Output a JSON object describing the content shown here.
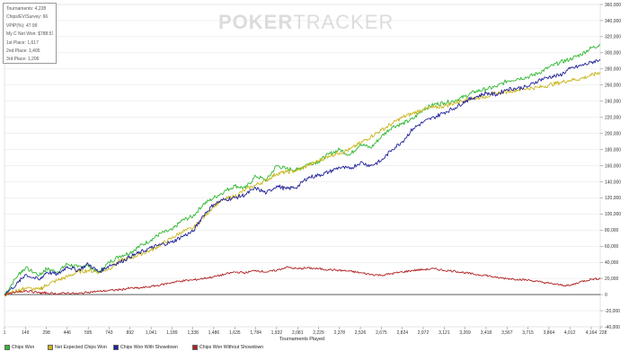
{
  "watermark": {
    "bold": "POKER",
    "light": "TRACKER"
  },
  "stats": [
    "Tournaments: 4,228",
    "Chips/EV/Survey: 66",
    "VPIP(%): 47.99",
    "My C Net Won: $788.51",
    "1st Place: 1,617",
    "2nd Place: 1,405",
    "3rd Place: 1,206"
  ],
  "chart_data": {
    "type": "line",
    "xlabel": "Tournaments Played",
    "ylabel": "",
    "xlim": [
      1,
      4228
    ],
    "ylim": [
      -40000,
      360000
    ],
    "grid": true,
    "x_ticks": [
      1,
      149,
      298,
      446,
      595,
      743,
      892,
      1041,
      1189,
      1338,
      1486,
      1635,
      1784,
      1932,
      2081,
      2229,
      2378,
      2526,
      2675,
      2824,
      2972,
      3121,
      3269,
      3418,
      3567,
      3715,
      3864,
      4012,
      4164
    ],
    "x_tick_labels": [
      "1",
      "149",
      "298",
      "446",
      "595",
      "743",
      "892",
      "1,041",
      "1,189",
      "1,338",
      "1,486",
      "1,635",
      "1,784",
      "1,932",
      "2,081",
      "2,229",
      "2,378",
      "2,526",
      "2,675",
      "2,824",
      "2,972",
      "3,121",
      "3,269",
      "3,418",
      "3,567",
      "3,715",
      "3,864",
      "4,012",
      "4,164"
    ],
    "x_end_label": "228",
    "y_ticks": [
      -40000,
      -20000,
      0,
      20000,
      40000,
      60000,
      80000,
      100000,
      120000,
      140000,
      160000,
      180000,
      200000,
      220000,
      240000,
      260000,
      280000,
      300000,
      320000,
      340000,
      360000
    ],
    "y_tick_labels": [
      "-40,000",
      "-20,000",
      "0",
      "20,000",
      "40,000",
      "60,000",
      "80,000",
      "100,000",
      "120,000",
      "140,000",
      "160,000",
      "180,000",
      "200,000",
      "220,000",
      "240,000",
      "260,000",
      "280,000",
      "300,000",
      "320,000",
      "340,000",
      "360,000"
    ],
    "legend_position": "bottom-left",
    "series": [
      {
        "name": "Chips Won",
        "color": "#2fb82f",
        "x": [
          1,
          100,
          149,
          250,
          298,
          380,
          446,
          520,
          595,
          670,
          743,
          820,
          892,
          960,
          1041,
          1110,
          1189,
          1260,
          1338,
          1410,
          1486,
          1560,
          1635,
          1710,
          1784,
          1860,
          1932,
          2000,
          2081,
          2150,
          2229,
          2300,
          2378,
          2450,
          2526,
          2600,
          2675,
          2750,
          2824,
          2900,
          2972,
          3050,
          3121,
          3200,
          3269,
          3340,
          3418,
          3490,
          3567,
          3640,
          3715,
          3790,
          3864,
          3940,
          4012,
          4090,
          4164,
          4228
        ],
        "y": [
          0,
          25000,
          33000,
          24000,
          32000,
          28000,
          38000,
          34000,
          36000,
          27000,
          40000,
          48000,
          52000,
          60000,
          68000,
          76000,
          80000,
          92000,
          97000,
          112000,
          120000,
          128000,
          135000,
          132000,
          147000,
          142000,
          160000,
          156000,
          155000,
          162000,
          165000,
          174000,
          180000,
          173000,
          187000,
          182000,
          196000,
          208000,
          212000,
          218000,
          230000,
          236000,
          238000,
          241000,
          246000,
          252000,
          255000,
          258000,
          265000,
          268000,
          270000,
          275000,
          282000,
          288000,
          292000,
          298000,
          306000,
          310000
        ]
      },
      {
        "name": "Net Expected Chips Won",
        "color": "#c8b418",
        "x": [
          1,
          100,
          149,
          250,
          298,
          380,
          446,
          520,
          595,
          670,
          743,
          820,
          892,
          960,
          1041,
          1110,
          1189,
          1260,
          1338,
          1410,
          1486,
          1560,
          1635,
          1710,
          1784,
          1860,
          1932,
          2000,
          2081,
          2150,
          2229,
          2300,
          2378,
          2450,
          2526,
          2600,
          2675,
          2750,
          2824,
          2900,
          2972,
          3050,
          3121,
          3200,
          3269,
          3340,
          3418,
          3490,
          3567,
          3640,
          3715,
          3790,
          3864,
          3940,
          4012,
          4090,
          4164,
          4228
        ],
        "y": [
          0,
          5000,
          8000,
          6000,
          12000,
          18000,
          22000,
          28000,
          30000,
          28000,
          32000,
          42000,
          45000,
          50000,
          55000,
          62000,
          70000,
          78000,
          82000,
          95000,
          110000,
          118000,
          122000,
          130000,
          136000,
          142000,
          150000,
          152000,
          154000,
          160000,
          166000,
          172000,
          176000,
          180000,
          188000,
          196000,
          204000,
          212000,
          220000,
          225000,
          230000,
          232000,
          234000,
          238000,
          242000,
          244000,
          246000,
          250000,
          252000,
          254000,
          256000,
          257000,
          260000,
          263000,
          266000,
          268000,
          272000,
          276000
        ]
      },
      {
        "name": "Chips Won With Showdown",
        "color": "#22229a",
        "x": [
          1,
          100,
          149,
          250,
          298,
          380,
          446,
          520,
          595,
          670,
          743,
          820,
          892,
          960,
          1041,
          1110,
          1189,
          1260,
          1338,
          1410,
          1486,
          1560,
          1635,
          1710,
          1784,
          1860,
          1932,
          2000,
          2081,
          2150,
          2229,
          2300,
          2378,
          2450,
          2526,
          2600,
          2675,
          2750,
          2824,
          2900,
          2972,
          3050,
          3121,
          3200,
          3269,
          3340,
          3418,
          3490,
          3567,
          3640,
          3715,
          3790,
          3864,
          3940,
          4012,
          4090,
          4164,
          4228
        ],
        "y": [
          0,
          15000,
          25000,
          18000,
          28000,
          25000,
          35000,
          30000,
          38000,
          28000,
          36000,
          40000,
          47000,
          52000,
          58000,
          62000,
          65000,
          72000,
          78000,
          98000,
          112000,
          118000,
          120000,
          124000,
          132000,
          126000,
          135000,
          131000,
          134000,
          145000,
          148000,
          152000,
          158000,
          156000,
          164000,
          160000,
          166000,
          180000,
          190000,
          206000,
          214000,
          220000,
          226000,
          232000,
          240000,
          245000,
          250000,
          248000,
          255000,
          256000,
          258000,
          266000,
          270000,
          272000,
          280000,
          284000,
          288000,
          292000
        ]
      },
      {
        "name": "Chips Won Without Showdown",
        "color": "#b02020",
        "x": [
          1,
          100,
          149,
          250,
          298,
          380,
          446,
          520,
          595,
          670,
          743,
          820,
          892,
          960,
          1041,
          1110,
          1189,
          1260,
          1338,
          1410,
          1486,
          1560,
          1635,
          1710,
          1784,
          1860,
          1932,
          2000,
          2081,
          2150,
          2229,
          2300,
          2378,
          2450,
          2526,
          2600,
          2675,
          2750,
          2824,
          2900,
          2972,
          3050,
          3121,
          3200,
          3269,
          3340,
          3418,
          3490,
          3567,
          3640,
          3715,
          3790,
          3864,
          3940,
          4012,
          4090,
          4164,
          4228
        ],
        "y": [
          0,
          3000,
          5000,
          2000,
          2000,
          1000,
          2000,
          1000,
          3000,
          4000,
          5000,
          6000,
          8000,
          8000,
          10000,
          12000,
          15000,
          17000,
          18000,
          20000,
          22000,
          25000,
          28000,
          27000,
          30000,
          28000,
          30000,
          34000,
          32000,
          33000,
          32000,
          31000,
          30000,
          29000,
          27000,
          25000,
          24000,
          26000,
          28000,
          30000,
          31000,
          32000,
          30000,
          29000,
          27000,
          25000,
          24000,
          21000,
          20000,
          19000,
          18000,
          16000,
          14000,
          12000,
          11000,
          16000,
          19000,
          20000
        ]
      }
    ]
  }
}
